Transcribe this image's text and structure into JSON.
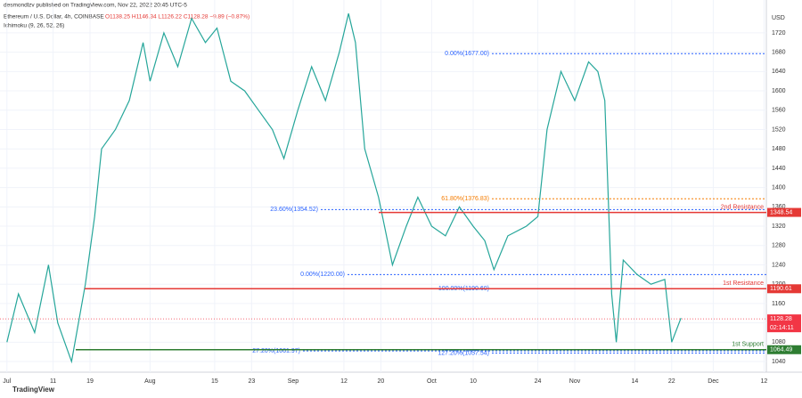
{
  "header": {
    "publisher": "desmondlzv published on TradingView.com, Nov 22, 2022 20:45 UTC-5",
    "symbol": "Ethereum / U.S. Dollar, 4h, COINBASE",
    "ohlc": "O1138.25 H1146.34 L1126.22 C1128.28 −9.89 (−0.87%)",
    "indicator": "Ichimoku (9, 26, 52, 26)",
    "watermark": "TradingView"
  },
  "chart_data": {
    "type": "line",
    "color": "#26a69a",
    "grid": true,
    "y_unit": "USD",
    "x": [
      0,
      2.5,
      6,
      9,
      11,
      14,
      17,
      19,
      20.5,
      23.5,
      26.5,
      29.5,
      31,
      34,
      37,
      40,
      43,
      45.5,
      48.5,
      51.5,
      54.5,
      57.5,
      60,
      63,
      66,
      69,
      72,
      74,
      75.5,
      77.5,
      80.5,
      83.5,
      86.5,
      89,
      92,
      95,
      98,
      101,
      103.5,
      105.5,
      108.5,
      112.5,
      115,
      117,
      120,
      123,
      126,
      128,
      129.5,
      131,
      132,
      133.5,
      136.5,
      139.5,
      142.5,
      144,
      146
    ],
    "values": [
      1080,
      1180,
      1100,
      1240,
      1120,
      1040,
      1200,
      1340,
      1480,
      1520,
      1580,
      1700,
      1620,
      1720,
      1650,
      1750,
      1700,
      1730,
      1620,
      1600,
      1560,
      1520,
      1460,
      1560,
      1650,
      1580,
      1680,
      1760,
      1700,
      1480,
      1380,
      1240,
      1320,
      1380,
      1320,
      1300,
      1360,
      1320,
      1290,
      1230,
      1300,
      1320,
      1340,
      1520,
      1640,
      1580,
      1660,
      1640,
      1580,
      1180,
      1080,
      1250,
      1220,
      1200,
      1210,
      1080,
      1130
    ],
    "xlim": [
      -1.5,
      164.5
    ],
    "ylim": [
      1018,
      1788
    ],
    "yticks": [
      1040,
      1080,
      1120,
      1160,
      1200,
      1240,
      1280,
      1320,
      1360,
      1400,
      1440,
      1480,
      1520,
      1560,
      1600,
      1640,
      1680,
      1720
    ],
    "xticks": [
      {
        "value": 0,
        "label": "Jul"
      },
      {
        "value": 10,
        "label": "11"
      },
      {
        "value": 18,
        "label": "19"
      },
      {
        "value": 31,
        "label": "Aug"
      },
      {
        "value": 45,
        "label": "15"
      },
      {
        "value": 53,
        "label": "23"
      },
      {
        "value": 62,
        "label": "Sep"
      },
      {
        "value": 73,
        "label": "12"
      },
      {
        "value": 81,
        "label": "20"
      },
      {
        "value": 92,
        "label": "Oct"
      },
      {
        "value": 101,
        "label": "10"
      },
      {
        "value": 115,
        "label": "24"
      },
      {
        "value": 123,
        "label": "Nov"
      },
      {
        "value": 136,
        "label": "14"
      },
      {
        "value": 144,
        "label": "22"
      },
      {
        "value": 153,
        "label": "Dec"
      },
      {
        "value": 164,
        "label": "12"
      }
    ],
    "levels": [
      {
        "label": "2nd Resistance",
        "value": 1348.54,
        "color": "#e53935"
      },
      {
        "label": "1st Resistance",
        "value": 1190.61,
        "color": "#e53935"
      },
      {
        "label": "1st Support",
        "value": 1064.49,
        "color": "#2e7d32"
      }
    ],
    "current_price": {
      "value": 1128.28,
      "countdown": "02:14:11",
      "color": "#f23645"
    },
    "fib": [
      {
        "label": "0.00%(1677.00)",
        "value": 1677,
        "color": "#2962ff"
      },
      {
        "label": "61.80%(1376.83)",
        "value": 1376.83,
        "color": "#f57c00"
      },
      {
        "label": "23.60%(1354.52)",
        "value": 1354.52,
        "color": "#2962ff"
      },
      {
        "label": "0.00%(1220.00)",
        "value": 1220,
        "color": "#2962ff"
      },
      {
        "label": "100.00%(1190.60)",
        "value": 1190.6,
        "color": "#2962ff"
      },
      {
        "label": "27.20%(1061.97)",
        "value": 1061.97,
        "color": "#2962ff"
      },
      {
        "label": "127.20%(1057.54)",
        "value": 1057.54,
        "color": "#2962ff"
      }
    ]
  }
}
